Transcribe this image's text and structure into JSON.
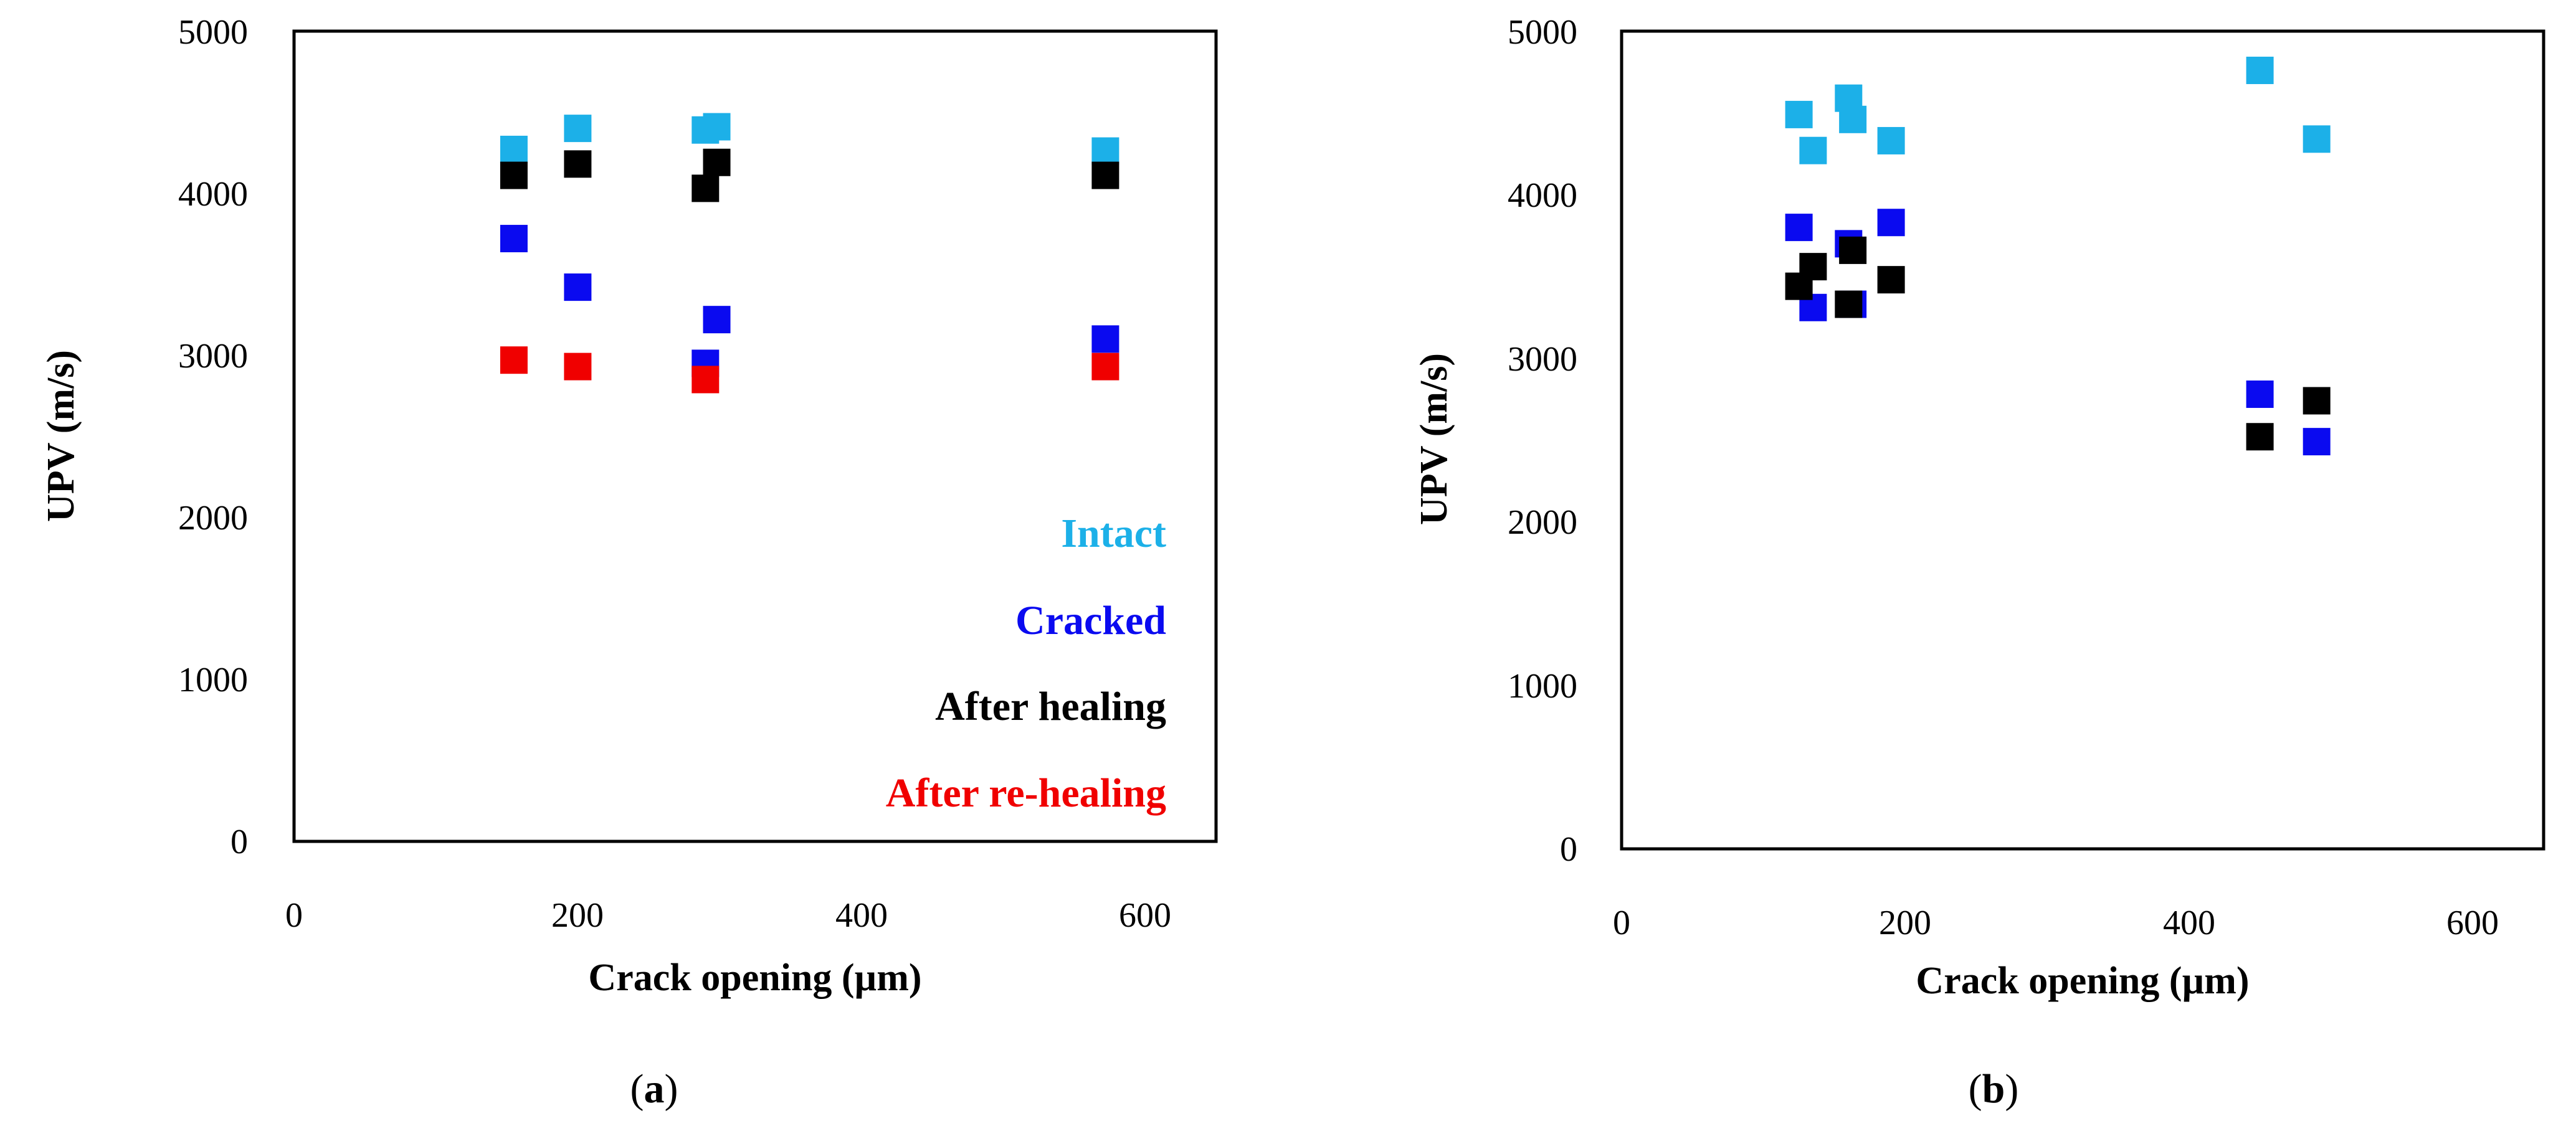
{
  "colors": {
    "intact": "#1cb0e8",
    "cracked": "#0a0af0",
    "after_healing": "#000000",
    "after_rehealing": "#f00000"
  },
  "chart_data": [
    {
      "type": "scatter",
      "caption": "(a)",
      "caption_parts": {
        "open": "(",
        "letter": "a",
        "close": ")"
      },
      "xlabel": "Crack opening (µm)",
      "ylabel": "UPV (m/s)",
      "xlim": [
        0,
        650
      ],
      "ylim": [
        0,
        5000
      ],
      "xticks": [
        "0",
        "200",
        "400",
        "600"
      ],
      "yticks": [
        "0",
        "1000",
        "2000",
        "3000",
        "4000",
        "5000"
      ],
      "legend_position": "bottom-right",
      "legend": [
        "Intact",
        "Cracked",
        "After healing",
        "After re-healing"
      ],
      "series": [
        {
          "name": "Intact",
          "color_key": "intact",
          "x": [
            155,
            200,
            290,
            298,
            572
          ],
          "y": [
            4270,
            4400,
            4390,
            4410,
            4260
          ]
        },
        {
          "name": "Cracked",
          "color_key": "cracked",
          "x": [
            155,
            200,
            290,
            298,
            572
          ],
          "y": [
            3720,
            3420,
            2950,
            3220,
            3100
          ]
        },
        {
          "name": "After healing",
          "color_key": "after_healing",
          "x": [
            155,
            200,
            290,
            298,
            572
          ],
          "y": [
            4110,
            4180,
            4030,
            4190,
            4110
          ]
        },
        {
          "name": "After re-healing",
          "color_key": "after_rehealing",
          "x": [
            155,
            200,
            290,
            572
          ],
          "y": [
            2970,
            2930,
            2850,
            2930
          ]
        }
      ]
    },
    {
      "type": "scatter",
      "caption": "(b)",
      "caption_parts": {
        "open": "(",
        "letter": "b",
        "close": ")"
      },
      "xlabel": "Crack opening (µm)",
      "ylabel": "UPV (m/s)",
      "xlim": [
        0,
        650
      ],
      "ylim": [
        0,
        5000
      ],
      "xticks": [
        "0",
        "200",
        "400",
        "600"
      ],
      "yticks": [
        "0",
        "1000",
        "2000",
        "3000",
        "4000",
        "5000"
      ],
      "series": [
        {
          "name": "Intact",
          "color_key": "intact",
          "x": [
            125,
            135,
            160,
            163,
            190,
            450,
            490
          ],
          "y": [
            4490,
            4270,
            4590,
            4460,
            4330,
            4760,
            4340
          ]
        },
        {
          "name": "Cracked",
          "color_key": "cracked",
          "x": [
            125,
            135,
            160,
            163,
            190,
            450,
            490
          ],
          "y": [
            3800,
            3310,
            3700,
            3330,
            3830,
            2780,
            2490
          ]
        },
        {
          "name": "After healing",
          "color_key": "after_healing",
          "x": [
            125,
            135,
            160,
            163,
            190,
            450,
            490
          ],
          "y": [
            3440,
            3560,
            3330,
            3660,
            3480,
            2520,
            2740
          ]
        }
      ]
    }
  ]
}
